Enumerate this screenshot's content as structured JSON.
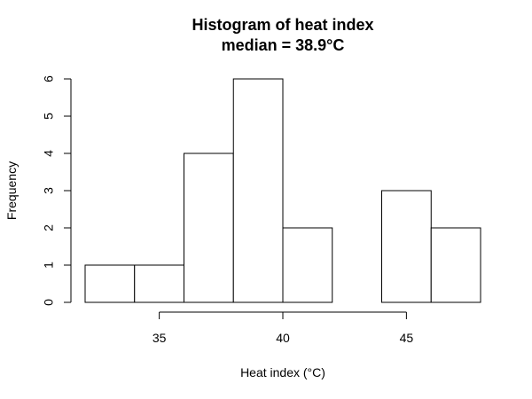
{
  "chart_data": {
    "type": "bar",
    "title": "Histogram of heat index",
    "subtitle": "median = 38.9°C",
    "xlabel": "Heat index (°C)",
    "ylabel": "Frequency",
    "bins": [
      {
        "x0": 32,
        "x1": 34,
        "count": 1
      },
      {
        "x0": 34,
        "x1": 36,
        "count": 1
      },
      {
        "x0": 36,
        "x1": 38,
        "count": 4
      },
      {
        "x0": 38,
        "x1": 40,
        "count": 6
      },
      {
        "x0": 40,
        "x1": 42,
        "count": 2
      },
      {
        "x0": 42,
        "x1": 44,
        "count": 0
      },
      {
        "x0": 44,
        "x1": 46,
        "count": 3
      },
      {
        "x0": 46,
        "x1": 48,
        "count": 2
      }
    ],
    "xlim": [
      32,
      48
    ],
    "ylim": [
      0,
      6
    ],
    "x_ticks": [
      35,
      40,
      45
    ],
    "x_tick_labels": [
      "35",
      "40",
      "45"
    ],
    "y_ticks": [
      0,
      1,
      2,
      3,
      4,
      5,
      6
    ],
    "y_tick_labels": [
      "0",
      "1",
      "2",
      "3",
      "4",
      "5",
      "6"
    ],
    "grid": false,
    "legend": "none",
    "colors": {
      "bar_fill": "#ffffff",
      "bar_stroke": "#000000"
    }
  }
}
